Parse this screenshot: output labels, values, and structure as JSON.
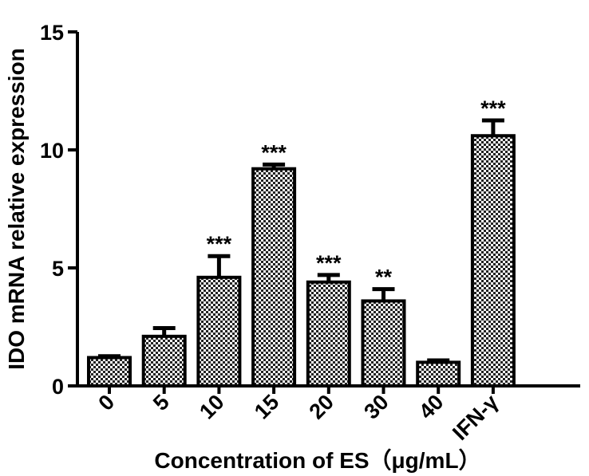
{
  "chart_data": {
    "type": "bar",
    "categories": [
      "0",
      "5",
      "10",
      "15",
      "20",
      "30",
      "40",
      "IFN-γ"
    ],
    "values": [
      1.2,
      2.1,
      4.6,
      9.2,
      4.4,
      3.6,
      1.0,
      10.6
    ],
    "errors": [
      0.06,
      0.35,
      0.9,
      0.18,
      0.3,
      0.5,
      0.08,
      0.65
    ],
    "significance": [
      "",
      "",
      "***",
      "***",
      "***",
      "**",
      "",
      "***"
    ],
    "xlabel": "Concentration of ES（μg/mL）",
    "ylabel": "IDO mRNA relative expression",
    "ylim": [
      0,
      15
    ],
    "yticks": [
      "0",
      "5",
      "10",
      "15"
    ],
    "grid": false,
    "bar_fill": "checkered gray",
    "colors": {
      "outline": "#000000",
      "fill_light": "#ffffff",
      "fill_dark": "#222222"
    }
  }
}
